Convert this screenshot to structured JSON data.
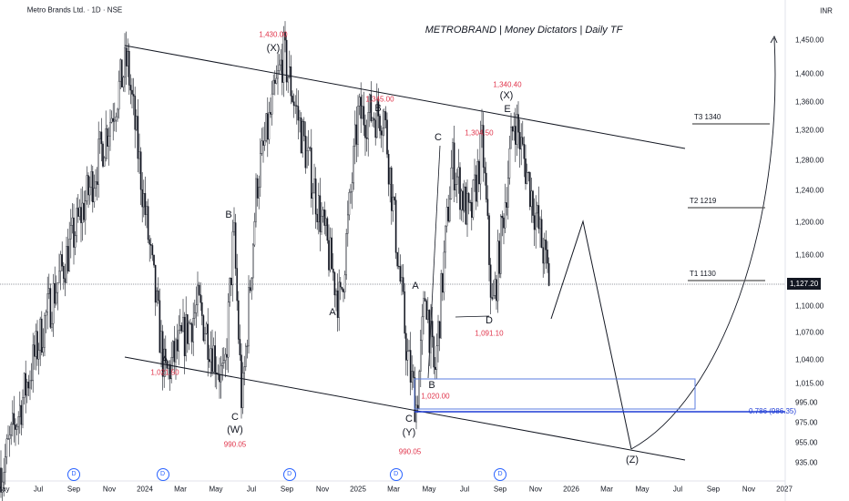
{
  "header": {
    "symbol_title": "Metro Brands Ltd. · 1D · NSE",
    "currency": "INR"
  },
  "chart_title": "METROBRAND | Money Dictators | Daily TF",
  "chart_data": {
    "type": "candlestick",
    "y_scale": "log",
    "y_ticks": [
      1450,
      1400,
      1360,
      1320,
      1280,
      1240,
      1200,
      1160,
      1100,
      1070,
      1040,
      1015,
      995,
      975,
      955,
      935
    ],
    "y_tick_labels": [
      "1,450.00",
      "1,400.00",
      "1,360.00",
      "1,320.00",
      "1,280.00",
      "1,240.00",
      "1,200.00",
      "1,160.00",
      "1,100.00",
      "1,070.00",
      "1,040.00",
      "1,015.00",
      "995.00",
      "975.00",
      "955.00",
      "935.00"
    ],
    "x_tick_labels": [
      "May",
      "Jul",
      "Sep",
      "Nov",
      "2024",
      "Mar",
      "May",
      "Jul",
      "Sep",
      "Nov",
      "2025",
      "Mar",
      "May",
      "Jul",
      "Sep",
      "Nov",
      "2026",
      "Mar",
      "May",
      "Jul",
      "Sep",
      "Nov",
      "2027"
    ],
    "last_price": "1,127.20",
    "swing_points": [
      {
        "date": "2023-05-01",
        "price": 930
      },
      {
        "date": "2023-07-15",
        "price": 1090
      },
      {
        "date": "2023-10-01",
        "price": 1250
      },
      {
        "date": "2023-12-01",
        "price": 1420
      },
      {
        "date": "2024-02-05",
        "price": 1021.5
      },
      {
        "date": "2024-04-01",
        "price": 1100
      },
      {
        "date": "2024-05-15",
        "price": 1015
      },
      {
        "date": "2024-06-01",
        "price": 1190
      },
      {
        "date": "2024-06-15",
        "price": 990.05
      },
      {
        "date": "2024-07-10",
        "price": 1250
      },
      {
        "date": "2024-08-25",
        "price": 1430
      },
      {
        "date": "2024-10-15",
        "price": 1250
      },
      {
        "date": "2024-12-01",
        "price": 1100
      },
      {
        "date": "2025-01-01",
        "price": 1340
      },
      {
        "date": "2025-02-15",
        "price": 1345
      },
      {
        "date": "2025-03-25",
        "price": 1040
      },
      {
        "date": "2025-04-10",
        "price": 990.05
      },
      {
        "date": "2025-04-25",
        "price": 1120
      },
      {
        "date": "2025-05-10",
        "price": 1020
      },
      {
        "date": "2025-06-10",
        "price": 1280
      },
      {
        "date": "2025-07-10",
        "price": 1200
      },
      {
        "date": "2025-08-01",
        "price": 1304.5
      },
      {
        "date": "2025-08-18",
        "price": 1091.1
      },
      {
        "date": "2025-09-25",
        "price": 1340.4
      },
      {
        "date": "2025-10-20",
        "price": 1250
      },
      {
        "date": "2025-11-25",
        "price": 1127.2
      }
    ],
    "annotations": {
      "x_top": {
        "wave": "(X)",
        "price": "1,430.00"
      },
      "b1": {
        "wave": "B",
        "price": "1,345.00"
      },
      "x_e": {
        "wave": "(X)",
        "sub": "E",
        "price": "1,340.40"
      },
      "c1": {
        "wave": "C",
        "price": "1,304.50"
      },
      "b_w": {
        "wave": "B"
      },
      "a_w": {
        "wave": "A",
        "price": "1,021.50"
      },
      "c_w": {
        "wave": "C",
        "degree": "(W)",
        "price": "990.05"
      },
      "a2": {
        "wave": "A"
      },
      "a3": {
        "wave": "A"
      },
      "b3": {
        "wave": "B",
        "price": "1,020.00"
      },
      "c_y": {
        "wave": "C",
        "degree": "(Y)",
        "price": "990.05"
      },
      "d": {
        "wave": "D",
        "price": "1,091.10"
      },
      "z": {
        "wave": "(Z)"
      }
    },
    "targets": [
      {
        "label": "T3 1340",
        "price": 1340
      },
      {
        "label": "T2 1219",
        "price": 1219
      },
      {
        "label": "T1 1130",
        "price": 1130
      }
    ],
    "fib_level": {
      "label": "0.786 (986.35)",
      "price": 986.35
    },
    "dividend_marker": "D",
    "colors": {
      "candles": "#131722",
      "labels_red": "#e0334a",
      "fib_blue": "#1e3cd6",
      "box_blue": "#5b7de0",
      "dividend": "#2962ff"
    }
  }
}
